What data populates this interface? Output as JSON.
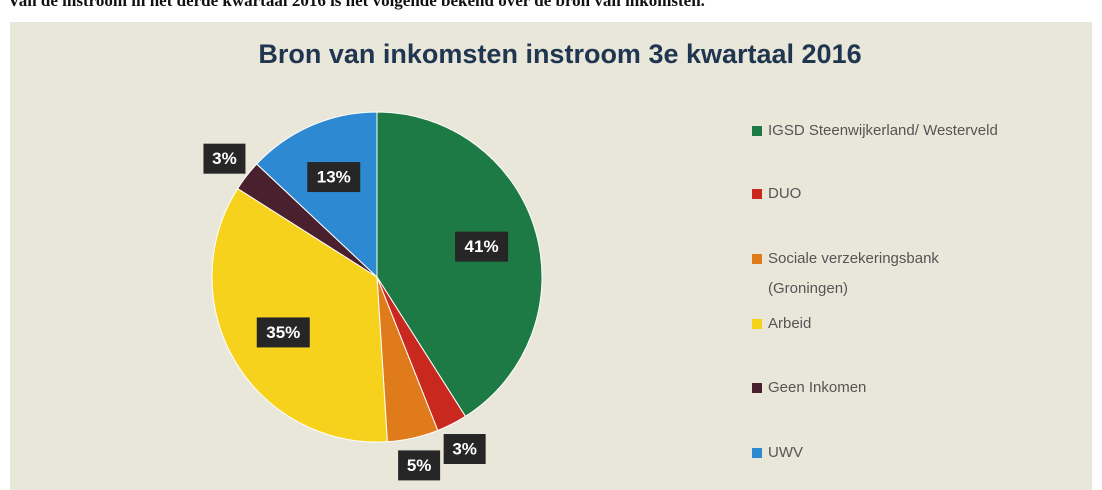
{
  "caption": "Van de instroom in het derde kwartaal 2016 is het volgende bekend over de bron van inkomsten.",
  "chart_data": {
    "type": "pie",
    "title": "Bron van inkomsten instroom 3e kwartaal 2016",
    "categories": [
      "IGSD Steenwijkerland/ Westerveld",
      "DUO",
      "Sociale verzekeringsbank (Groningen)",
      "Arbeid",
      "Geen Inkomen",
      "UWV"
    ],
    "values": [
      41,
      3,
      5,
      35,
      3,
      13
    ],
    "value_labels": [
      "41%",
      "3%",
      "5%",
      "35%",
      "3%",
      "13%"
    ],
    "colors": [
      "#1e7a45",
      "#c9281f",
      "#e07b1c",
      "#f6d21c",
      "#4a1f2e",
      "#2d8ad2"
    ],
    "legend": "right"
  }
}
